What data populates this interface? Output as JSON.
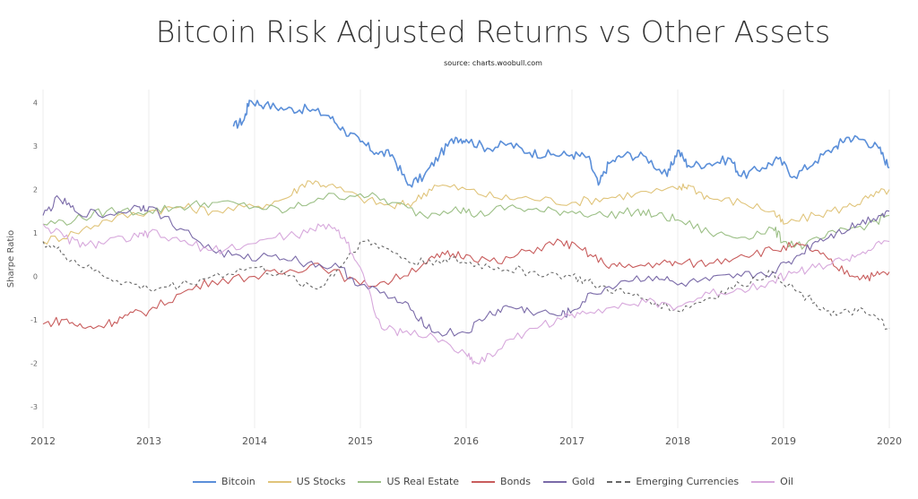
{
  "chart_data": {
    "type": "line",
    "title": "Bitcoin Risk Adjusted Returns vs Other Assets",
    "subtitle": "source: charts.woobull.com",
    "xlabel": "",
    "ylabel": "Sharpe Ratio",
    "xlim": [
      2012,
      2020
    ],
    "ylim": [
      -3.5,
      4.3
    ],
    "x_ticks": [
      "2012",
      "2013",
      "2014",
      "2015",
      "2016",
      "2017",
      "2018",
      "2019",
      "2020"
    ],
    "y_ticks": [
      "4",
      "3",
      "2",
      "1",
      "0",
      "-1",
      "-2",
      "-3"
    ],
    "grid": "vertical",
    "legend_position": "bottom",
    "series": [
      {
        "name": "Bitcoin",
        "color": "#5b8fd9",
        "dash": "solid",
        "x": [
          2013.8,
          2013.9,
          2013.95,
          2014.1,
          2014.3,
          2014.5,
          2014.7,
          2014.85,
          2015.0,
          2015.15,
          2015.3,
          2015.45,
          2015.6,
          2015.75,
          2015.9,
          2016.0,
          2016.2,
          2016.4,
          2016.6,
          2016.8,
          2017.0,
          2017.15,
          2017.25,
          2017.35,
          2017.5,
          2017.7,
          2017.9,
          2018.0,
          2018.1,
          2018.3,
          2018.5,
          2018.6,
          2018.8,
          2018.95,
          2019.1,
          2019.3,
          2019.5,
          2019.6,
          2019.75,
          2019.9,
          2020.0
        ],
        "y": [
          3.45,
          3.6,
          4.05,
          3.95,
          3.85,
          3.85,
          3.7,
          3.35,
          3.1,
          2.85,
          2.8,
          2.1,
          2.3,
          2.8,
          3.2,
          3.15,
          2.95,
          3.05,
          2.85,
          2.8,
          2.8,
          2.75,
          2.1,
          2.6,
          2.8,
          2.75,
          2.3,
          2.9,
          2.55,
          2.6,
          2.7,
          2.3,
          2.5,
          2.7,
          2.3,
          2.65,
          3.0,
          3.2,
          3.15,
          2.95,
          2.5
        ]
      },
      {
        "name": "US Stocks",
        "color": "#e0c47a",
        "dash": "solid",
        "x": [
          2012,
          2012.3,
          2012.6,
          2013,
          2013.3,
          2013.6,
          2014,
          2014.3,
          2014.5,
          2014.7,
          2015,
          2015.3,
          2015.5,
          2015.7,
          2016,
          2016.3,
          2016.6,
          2017,
          2017.3,
          2017.6,
          2018,
          2018.1,
          2018.3,
          2018.6,
          2018.9,
          2019,
          2019.3,
          2019.6,
          2019.8,
          2020
        ],
        "y": [
          0.8,
          1.0,
          1.3,
          1.5,
          1.6,
          1.5,
          1.6,
          1.8,
          2.2,
          2.1,
          1.8,
          1.6,
          1.7,
          2.1,
          2.0,
          1.8,
          1.8,
          1.7,
          1.8,
          1.9,
          2.0,
          2.1,
          1.8,
          1.7,
          1.5,
          1.2,
          1.4,
          1.6,
          1.8,
          2.0
        ]
      },
      {
        "name": "US Real Estate",
        "color": "#9bbf85",
        "dash": "solid",
        "x": [
          2012,
          2012.3,
          2012.6,
          2013,
          2013.3,
          2013.6,
          2014,
          2014.3,
          2014.6,
          2015,
          2015.3,
          2015.6,
          2015.9,
          2016.1,
          2016.4,
          2016.7,
          2017,
          2017.3,
          2017.6,
          2017.8,
          2018,
          2018.3,
          2018.6,
          2018.9,
          2019,
          2019.2,
          2019.5,
          2019.8,
          2020
        ],
        "y": [
          1.2,
          1.3,
          1.5,
          1.5,
          1.6,
          1.7,
          1.6,
          1.5,
          1.8,
          1.9,
          1.7,
          1.4,
          1.6,
          1.4,
          1.6,
          1.5,
          1.5,
          1.4,
          1.5,
          1.4,
          1.3,
          1.0,
          0.9,
          1.1,
          0.8,
          0.7,
          1.0,
          1.2,
          1.4
        ]
      },
      {
        "name": "Bonds",
        "color": "#c85c5c",
        "dash": "solid",
        "x": [
          2012,
          2012.2,
          2012.4,
          2012.6,
          2012.8,
          2013,
          2013.3,
          2013.6,
          2014,
          2014.3,
          2014.6,
          2015,
          2015.3,
          2015.6,
          2015.8,
          2016,
          2016.3,
          2016.6,
          2016.9,
          2017.1,
          2017.3,
          2017.5,
          2017.8,
          2018.0,
          2018.3,
          2018.6,
          2018.9,
          2019.1,
          2019.3,
          2019.5,
          2019.7,
          2019.85,
          2020
        ],
        "y": [
          -1.1,
          -1.0,
          -1.2,
          -1.1,
          -0.9,
          -0.8,
          -0.4,
          -0.1,
          0.0,
          0.1,
          0.3,
          -0.2,
          -0.1,
          0.3,
          0.5,
          0.5,
          0.3,
          0.6,
          0.8,
          0.6,
          0.3,
          0.2,
          0.3,
          0.3,
          0.3,
          0.5,
          0.6,
          0.7,
          0.6,
          0.2,
          0.0,
          0.0,
          0.1
        ]
      },
      {
        "name": "Gold",
        "color": "#7a6aa8",
        "dash": "solid",
        "x": [
          2012,
          2012.15,
          2012.3,
          2012.6,
          2012.9,
          2013,
          2013.3,
          2013.6,
          2013.9,
          2014.2,
          2014.5,
          2014.8,
          2015,
          2015.3,
          2015.5,
          2015.7,
          2016,
          2016.2,
          2016.4,
          2016.6,
          2016.9,
          2017.0,
          2017.2,
          2017.5,
          2017.8,
          2018,
          2018.3,
          2018.6,
          2018.9,
          2019.1,
          2019.3,
          2019.5,
          2019.7,
          2019.9,
          2020
        ],
        "y": [
          1.4,
          1.8,
          1.5,
          1.4,
          1.6,
          1.6,
          1.1,
          0.6,
          0.4,
          0.5,
          0.3,
          0.2,
          -0.2,
          -0.5,
          -0.8,
          -1.3,
          -1.3,
          -0.9,
          -0.7,
          -0.8,
          -0.9,
          -0.8,
          -0.4,
          -0.1,
          0.0,
          -0.2,
          -0.1,
          0.0,
          0.1,
          0.4,
          0.8,
          1.0,
          1.2,
          1.4,
          1.5
        ]
      },
      {
        "name": "Emerging Currencies",
        "color": "#666666",
        "dash": "dashed",
        "x": [
          2012,
          2012.2,
          2012.4,
          2012.7,
          2013,
          2013.3,
          2013.6,
          2014,
          2014.3,
          2014.6,
          2014.8,
          2015,
          2015.2,
          2015.5,
          2015.8,
          2016,
          2016.3,
          2016.6,
          2017,
          2017.2,
          2017.5,
          2017.8,
          2018,
          2018.3,
          2018.6,
          2018.9,
          2019.1,
          2019.3,
          2019.5,
          2019.7,
          2019.9,
          2020
        ],
        "y": [
          0.8,
          0.5,
          0.2,
          -0.1,
          -0.3,
          -0.2,
          0.0,
          0.2,
          0.0,
          -0.3,
          0.2,
          0.8,
          0.7,
          0.3,
          0.4,
          0.3,
          0.2,
          0.1,
          0.0,
          -0.2,
          -0.4,
          -0.6,
          -0.8,
          -0.5,
          -0.2,
          0.1,
          -0.3,
          -0.6,
          -0.9,
          -0.8,
          -1.0,
          -1.2
        ]
      },
      {
        "name": "Oil",
        "color": "#d7a8dc",
        "dash": "solid",
        "x": [
          2012,
          2012.2,
          2012.4,
          2012.6,
          2012.9,
          2013,
          2013.3,
          2013.6,
          2013.9,
          2014.2,
          2014.5,
          2014.7,
          2014.85,
          2015.0,
          2015.2,
          2015.4,
          2015.7,
          2016,
          2016.1,
          2016.3,
          2016.6,
          2016.9,
          2017.1,
          2017.4,
          2017.7,
          2018,
          2018.3,
          2018.6,
          2018.9,
          2019.1,
          2019.3,
          2019.6,
          2019.8,
          2020
        ],
        "y": [
          1.2,
          0.9,
          0.7,
          0.8,
          0.9,
          1.0,
          0.8,
          0.6,
          0.7,
          0.9,
          1.0,
          1.2,
          0.9,
          0.2,
          -1.2,
          -1.3,
          -1.4,
          -1.8,
          -2.0,
          -1.7,
          -1.2,
          -1.0,
          -0.8,
          -0.7,
          -0.6,
          -0.7,
          -0.4,
          -0.3,
          -0.1,
          0.1,
          0.2,
          0.4,
          0.6,
          0.8
        ]
      }
    ]
  }
}
